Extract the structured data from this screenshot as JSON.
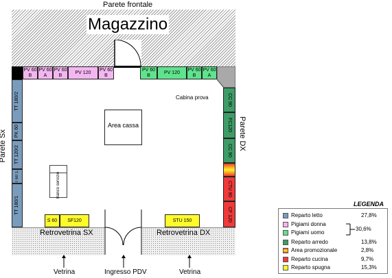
{
  "labels": {
    "front_wall": "Parete frontale",
    "warehouse": "Magazzino",
    "left_wall": "Parete Sx",
    "right_wall": "Parete DX",
    "cash_area": "Area cassa",
    "fitting_room": "Cabina prova",
    "service_counter": "Banco servizio",
    "rear_left": "Retrovetrina SX",
    "rear_right": "Retrovetrina DX",
    "shop_window_left": "Vetrina",
    "shop_entrance": "Ingresso PDV",
    "shop_window_right": "Vetrina"
  },
  "top_left_shelves": [
    {
      "line1": "PV 60",
      "line2": "B"
    },
    {
      "line1": "PV 60",
      "line2": "A"
    },
    {
      "line1": "PV 60",
      "line2": "B"
    },
    {
      "line1": "PV 120",
      "line2": ""
    },
    {
      "line1": "PV 60",
      "line2": "B"
    }
  ],
  "top_right_shelves": [
    {
      "line1": "PV 60",
      "line2": "B"
    },
    {
      "line1": "PV 120",
      "line2": ""
    },
    {
      "line1": "PV 60",
      "line2": "B"
    },
    {
      "line1": "PV 60",
      "line2": "A"
    }
  ],
  "left_shelves": [
    "TT 180/2",
    "PK 60",
    "TT 120/2",
    "TT 60 1.5",
    "TT 180/1"
  ],
  "right_shelves": [
    "CC 90",
    "FC120",
    "CC 90",
    "CTU 90",
    "CF 120"
  ],
  "bottom_shelves": [
    "S 60",
    "SF120",
    "STU 150"
  ],
  "legend": {
    "title": "LEGENDA",
    "items": [
      {
        "label": "Reparto letto",
        "value": "27,8%",
        "color": "#7a9cbc"
      },
      {
        "label": "Pigiami donna",
        "value": "",
        "color": "#f4b6f0"
      },
      {
        "label": "Pigiami uomo",
        "value": "",
        "color": "#5fe38c"
      },
      {
        "label": "Reparto arredo",
        "value": "13,8%",
        "color": "#3e9c68"
      },
      {
        "label": "Area promozionale",
        "value": "2,8%",
        "color": "#f5a020"
      },
      {
        "label": "Reparto cucina",
        "value": "9,7%",
        "color": "#f03a3a"
      },
      {
        "label": "Reparto spugna",
        "value": "15,3%",
        "color": "#fffb2a"
      }
    ],
    "pigiami_total": "30,6%"
  }
}
